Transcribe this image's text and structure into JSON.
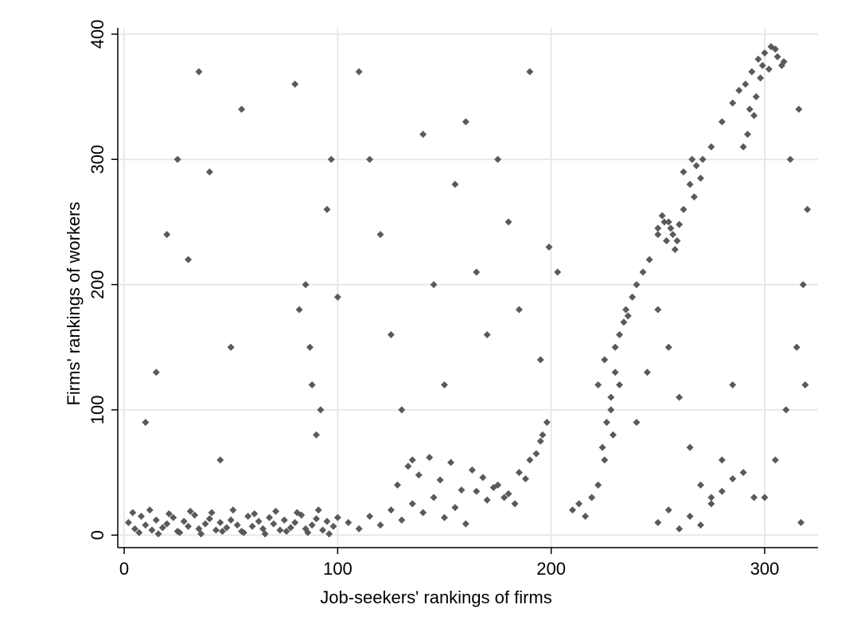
{
  "chart_data": {
    "type": "scatter",
    "title": "",
    "xlabel": "Job-seekers' rankings of firms",
    "ylabel": "Firms' rankings of workers",
    "xlim": [
      -3,
      325
    ],
    "ylim": [
      -10,
      405
    ],
    "xticks": [
      0,
      100,
      200,
      300
    ],
    "yticks": [
      0,
      100,
      200,
      300,
      400
    ],
    "xtick_labels": [
      "0",
      "100",
      "200",
      "300"
    ],
    "ytick_labels": [
      "0",
      "100",
      "200",
      "300",
      "400"
    ],
    "grid": true,
    "legend": "none",
    "colors": {
      "marker": "#5a5a5a",
      "grid": "#e8e8e8",
      "axis": "#000000",
      "background": "#ffffff"
    },
    "series": [
      {
        "marker": "diamond",
        "points": [
          [
            2,
            10
          ],
          [
            5,
            5
          ],
          [
            8,
            15
          ],
          [
            10,
            8
          ],
          [
            13,
            4
          ],
          [
            15,
            12
          ],
          [
            18,
            6
          ],
          [
            20,
            9
          ],
          [
            23,
            14
          ],
          [
            25,
            3
          ],
          [
            28,
            11
          ],
          [
            30,
            7
          ],
          [
            33,
            16
          ],
          [
            35,
            5
          ],
          [
            38,
            9
          ],
          [
            40,
            13
          ],
          [
            43,
            4
          ],
          [
            45,
            10
          ],
          [
            48,
            6
          ],
          [
            50,
            12
          ],
          [
            53,
            8
          ],
          [
            55,
            3
          ],
          [
            58,
            15
          ],
          [
            60,
            7
          ],
          [
            63,
            11
          ],
          [
            65,
            5
          ],
          [
            68,
            14
          ],
          [
            70,
            9
          ],
          [
            73,
            4
          ],
          [
            75,
            12
          ],
          [
            78,
            6
          ],
          [
            80,
            10
          ],
          [
            83,
            16
          ],
          [
            85,
            5
          ],
          [
            88,
            8
          ],
          [
            90,
            13
          ],
          [
            93,
            4
          ],
          [
            95,
            11
          ],
          [
            98,
            7
          ],
          [
            100,
            14
          ],
          [
            4,
            18
          ],
          [
            7,
            2
          ],
          [
            12,
            20
          ],
          [
            16,
            1
          ],
          [
            21,
            17
          ],
          [
            26,
            2
          ],
          [
            31,
            19
          ],
          [
            36,
            1
          ],
          [
            41,
            18
          ],
          [
            46,
            3
          ],
          [
            51,
            20
          ],
          [
            56,
            2
          ],
          [
            61,
            17
          ],
          [
            66,
            1
          ],
          [
            71,
            19
          ],
          [
            76,
            3
          ],
          [
            81,
            18
          ],
          [
            86,
            2
          ],
          [
            91,
            20
          ],
          [
            96,
            1
          ],
          [
            105,
            10
          ],
          [
            110,
            5
          ],
          [
            115,
            15
          ],
          [
            120,
            8
          ],
          [
            125,
            20
          ],
          [
            130,
            12
          ],
          [
            135,
            25
          ],
          [
            140,
            18
          ],
          [
            145,
            30
          ],
          [
            150,
            14
          ],
          [
            155,
            22
          ],
          [
            160,
            9
          ],
          [
            165,
            35
          ],
          [
            170,
            28
          ],
          [
            175,
            40
          ],
          [
            180,
            33
          ],
          [
            185,
            50
          ],
          [
            190,
            60
          ],
          [
            195,
            75
          ],
          [
            198,
            90
          ],
          [
            128,
            40
          ],
          [
            133,
            55
          ],
          [
            138,
            48
          ],
          [
            143,
            62
          ],
          [
            148,
            44
          ],
          [
            153,
            58
          ],
          [
            158,
            36
          ],
          [
            163,
            52
          ],
          [
            168,
            46
          ],
          [
            173,
            38
          ],
          [
            178,
            30
          ],
          [
            183,
            25
          ],
          [
            188,
            45
          ],
          [
            193,
            65
          ],
          [
            196,
            80
          ],
          [
            210,
            20
          ],
          [
            213,
            25
          ],
          [
            216,
            15
          ],
          [
            219,
            30
          ],
          [
            222,
            40
          ],
          [
            225,
            60
          ],
          [
            228,
            100
          ],
          [
            230,
            130
          ],
          [
            232,
            160
          ],
          [
            235,
            180
          ],
          [
            238,
            190
          ],
          [
            240,
            200
          ],
          [
            243,
            210
          ],
          [
            246,
            220
          ],
          [
            250,
            240
          ],
          [
            253,
            250
          ],
          [
            256,
            245
          ],
          [
            259,
            235
          ],
          [
            262,
            260
          ],
          [
            265,
            280
          ],
          [
            268,
            295
          ],
          [
            271,
            300
          ],
          [
            275,
            310
          ],
          [
            280,
            330
          ],
          [
            285,
            345
          ],
          [
            288,
            355
          ],
          [
            291,
            360
          ],
          [
            294,
            370
          ],
          [
            297,
            380
          ],
          [
            300,
            385
          ],
          [
            303,
            390
          ],
          [
            306,
            382
          ],
          [
            309,
            378
          ],
          [
            222,
            120
          ],
          [
            225,
            140
          ],
          [
            228,
            110
          ],
          [
            230,
            150
          ],
          [
            226,
            90
          ],
          [
            224,
            70
          ],
          [
            229,
            80
          ],
          [
            232,
            120
          ],
          [
            234,
            170
          ],
          [
            236,
            175
          ],
          [
            250,
            245
          ],
          [
            252,
            255
          ],
          [
            255,
            250
          ],
          [
            257,
            240
          ],
          [
            260,
            248
          ],
          [
            254,
            235
          ],
          [
            258,
            228
          ],
          [
            262,
            290
          ],
          [
            266,
            300
          ],
          [
            270,
            285
          ],
          [
            267,
            270
          ],
          [
            292,
            320
          ],
          [
            295,
            335
          ],
          [
            290,
            310
          ],
          [
            296,
            350
          ],
          [
            298,
            365
          ],
          [
            302,
            372
          ],
          [
            305,
            388
          ],
          [
            308,
            375
          ],
          [
            299,
            375
          ],
          [
            293,
            340
          ],
          [
            10,
            90
          ],
          [
            15,
            130
          ],
          [
            20,
            240
          ],
          [
            25,
            300
          ],
          [
            30,
            220
          ],
          [
            35,
            370
          ],
          [
            40,
            290
          ],
          [
            45,
            60
          ],
          [
            50,
            150
          ],
          [
            55,
            340
          ],
          [
            80,
            360
          ],
          [
            85,
            200
          ],
          [
            88,
            120
          ],
          [
            90,
            80
          ],
          [
            95,
            260
          ],
          [
            82,
            180
          ],
          [
            87,
            150
          ],
          [
            92,
            100
          ],
          [
            97,
            300
          ],
          [
            100,
            190
          ],
          [
            110,
            370
          ],
          [
            115,
            300
          ],
          [
            120,
            240
          ],
          [
            125,
            160
          ],
          [
            130,
            100
          ],
          [
            135,
            60
          ],
          [
            140,
            320
          ],
          [
            145,
            200
          ],
          [
            150,
            120
          ],
          [
            155,
            280
          ],
          [
            160,
            330
          ],
          [
            165,
            210
          ],
          [
            170,
            160
          ],
          [
            175,
            300
          ],
          [
            180,
            250
          ],
          [
            185,
            180
          ],
          [
            190,
            370
          ],
          [
            195,
            140
          ],
          [
            199,
            230
          ],
          [
            203,
            210
          ],
          [
            240,
            90
          ],
          [
            245,
            130
          ],
          [
            250,
            180
          ],
          [
            255,
            150
          ],
          [
            260,
            110
          ],
          [
            265,
            70
          ],
          [
            270,
            40
          ],
          [
            275,
            30
          ],
          [
            280,
            60
          ],
          [
            285,
            120
          ],
          [
            300,
            30
          ],
          [
            305,
            60
          ],
          [
            310,
            100
          ],
          [
            315,
            150
          ],
          [
            318,
            200
          ],
          [
            320,
            260
          ],
          [
            312,
            300
          ],
          [
            316,
            340
          ],
          [
            319,
            120
          ],
          [
            317,
            10
          ],
          [
            250,
            10
          ],
          [
            255,
            20
          ],
          [
            260,
            5
          ],
          [
            265,
            15
          ],
          [
            270,
            8
          ],
          [
            275,
            25
          ],
          [
            280,
            35
          ],
          [
            285,
            45
          ],
          [
            290,
            50
          ],
          [
            295,
            30
          ]
        ]
      }
    ]
  }
}
